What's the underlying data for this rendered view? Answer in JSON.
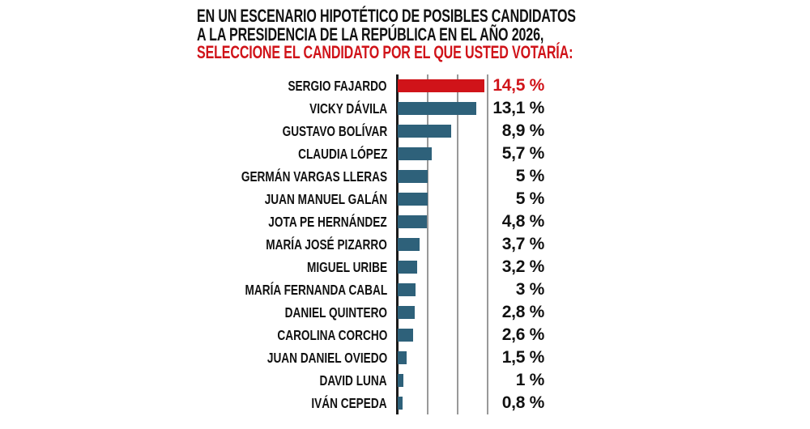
{
  "title": {
    "line1": "EN UN ESCENARIO HIPOTÉTICO DE POSIBLES CANDIDATOS",
    "line2": "A LA PRESIDENCIA DE LA REPÚBLICA EN EL AÑO 2026,",
    "line3": "SELECCIONE EL CANDIDATO POR EL QUE USTED VOTARÍA:"
  },
  "colors": {
    "highlight_red": "#d01319",
    "bar_teal": "#2e617a",
    "gridline_gray": "#999999",
    "axis_black": "#1a1a1a",
    "text_black": "#111111",
    "background": "#ffffff"
  },
  "chart_data": {
    "type": "bar",
    "orientation": "horizontal",
    "title": "EN UN ESCENARIO HIPOTÉTICO DE POSIBLES CANDIDATOS A LA PRESIDENCIA DE LA REPÚBLICA EN EL AÑO 2026, SELECCIONE EL CANDIDATO POR EL QUE USTED VOTARÍA:",
    "categories": [
      "SERGIO FAJARDO",
      "VICKY DÁVILA",
      "GUSTAVO BOLÍVAR",
      "CLAUDIA LÓPEZ",
      "GERMÁN VARGAS LLERAS",
      "JUAN MANUEL GALÁN",
      "JOTA PE HERNÁNDEZ",
      "MARÍA JOSÉ PIZARRO",
      "MIGUEL URIBE",
      "MARÍA FERNANDA CABAL",
      "DANIEL QUINTERO",
      "CAROLINA CORCHO",
      "JUAN DANIEL OVIEDO",
      "DAVID LUNA",
      "IVÁN CEPEDA"
    ],
    "values": [
      14.5,
      13.1,
      8.9,
      5.7,
      5,
      5,
      4.8,
      3.7,
      3.2,
      3,
      2.8,
      2.6,
      1.5,
      1,
      0.8
    ],
    "value_labels": [
      "14,5 %",
      "13,1 %",
      "8,9 %",
      "5,7 %",
      "5 %",
      "5 %",
      "4,8 %",
      "3,7 %",
      "3,2 %",
      "3 %",
      "2,8 %",
      "2,6 %",
      "1,5 %",
      "1 %",
      "0,8 %"
    ],
    "xlabel": "",
    "ylabel": "",
    "xlim": [
      0,
      15
    ],
    "gridline_values": [
      5,
      10,
      15
    ],
    "grid": true,
    "legend": "none",
    "bar_color": "#2e617a",
    "highlight_index": 0,
    "highlight_color": "#d01319",
    "value_label_color": "#111111",
    "highlight_value_label_color": "#d01319"
  }
}
